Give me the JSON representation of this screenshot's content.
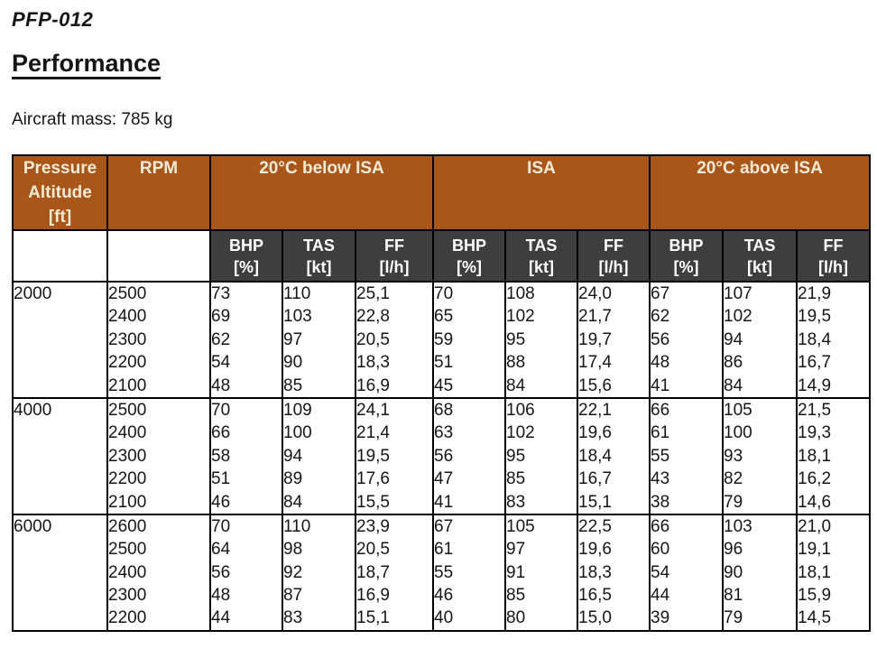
{
  "header": {
    "doc_code": "PFP-012",
    "title": "Performance",
    "aircraft_mass": "Aircraft mass: 785 kg"
  },
  "colors": {
    "header_bg": "#a9561b",
    "header_text": "#f3ead6",
    "subheader_bg": "#3e3e3e",
    "subheader_text": "#ffffff",
    "border": "#000000"
  },
  "table": {
    "col1_header_lines": [
      "Pressure",
      "Altitude",
      "[ft]"
    ],
    "col2_header": "RPM",
    "groups": [
      "20°C below ISA",
      "ISA",
      "20°C above ISA"
    ],
    "sub_headers": [
      [
        "BHP",
        "[%]"
      ],
      [
        "TAS",
        "[kt]"
      ],
      [
        "FF",
        "[l/h]"
      ]
    ],
    "section_keys": [
      "below_isa",
      "isa",
      "above_isa"
    ],
    "metric_keys": [
      "bhp",
      "tas",
      "ff"
    ],
    "blocks": [
      {
        "altitude": "2000",
        "rpm": [
          "2500",
          "2400",
          "2300",
          "2200",
          "2100"
        ],
        "below_isa": {
          "bhp": [
            "73",
            "69",
            "62",
            "54",
            "48"
          ],
          "tas": [
            "110",
            "103",
            "97",
            "90",
            "85"
          ],
          "ff": [
            "25,1",
            "22,8",
            "20,5",
            "18,3",
            "16,9"
          ]
        },
        "isa": {
          "bhp": [
            "70",
            "65",
            "59",
            "51",
            "45"
          ],
          "tas": [
            "108",
            "102",
            "95",
            "88",
            "84"
          ],
          "ff": [
            "24,0",
            "21,7",
            "19,7",
            "17,4",
            "15,6"
          ]
        },
        "above_isa": {
          "bhp": [
            "67",
            "62",
            "56",
            "48",
            "41"
          ],
          "tas": [
            "107",
            "102",
            "94",
            "86",
            "84"
          ],
          "ff": [
            "21,9",
            "19,5",
            "18,4",
            "16,7",
            "14,9"
          ]
        }
      },
      {
        "altitude": "4000",
        "rpm": [
          "2500",
          "2400",
          "2300",
          "2200",
          "2100"
        ],
        "below_isa": {
          "bhp": [
            "70",
            "66",
            "58",
            "51",
            "46"
          ],
          "tas": [
            "109",
            "100",
            "94",
            "89",
            "84"
          ],
          "ff": [
            "24,1",
            "21,4",
            "19,5",
            "17,6",
            "15,5"
          ]
        },
        "isa": {
          "bhp": [
            "68",
            "63",
            "56",
            "47",
            "41"
          ],
          "tas": [
            "106",
            "102",
            "95",
            "85",
            "83"
          ],
          "ff": [
            "22,1",
            "19,6",
            "18,4",
            "16,7",
            "15,1"
          ]
        },
        "above_isa": {
          "bhp": [
            "66",
            "61",
            "55",
            "43",
            "38"
          ],
          "tas": [
            "105",
            "100",
            "93",
            "82",
            "79"
          ],
          "ff": [
            "21,5",
            "19,3",
            "18,1",
            "16,2",
            "14,6"
          ]
        }
      },
      {
        "altitude": "6000",
        "rpm": [
          "2600",
          "2500",
          "2400",
          "2300",
          "2200"
        ],
        "below_isa": {
          "bhp": [
            "70",
            "64",
            "56",
            "48",
            "44"
          ],
          "tas": [
            "110",
            "98",
            "92",
            "87",
            "83"
          ],
          "ff": [
            "23,9",
            "20,5",
            "18,7",
            "16,9",
            "15,1"
          ]
        },
        "isa": {
          "bhp": [
            "67",
            "61",
            "55",
            "46",
            "40"
          ],
          "tas": [
            "105",
            "97",
            "91",
            "85",
            "80"
          ],
          "ff": [
            "22,5",
            "19,6",
            "18,3",
            "16,5",
            "15,0"
          ]
        },
        "above_isa": {
          "bhp": [
            "66",
            "60",
            "54",
            "44",
            "39"
          ],
          "tas": [
            "103",
            "96",
            "90",
            "81",
            "79"
          ],
          "ff": [
            "21,0",
            "19,1",
            "18,1",
            "15,9",
            "14,5"
          ]
        }
      }
    ]
  }
}
